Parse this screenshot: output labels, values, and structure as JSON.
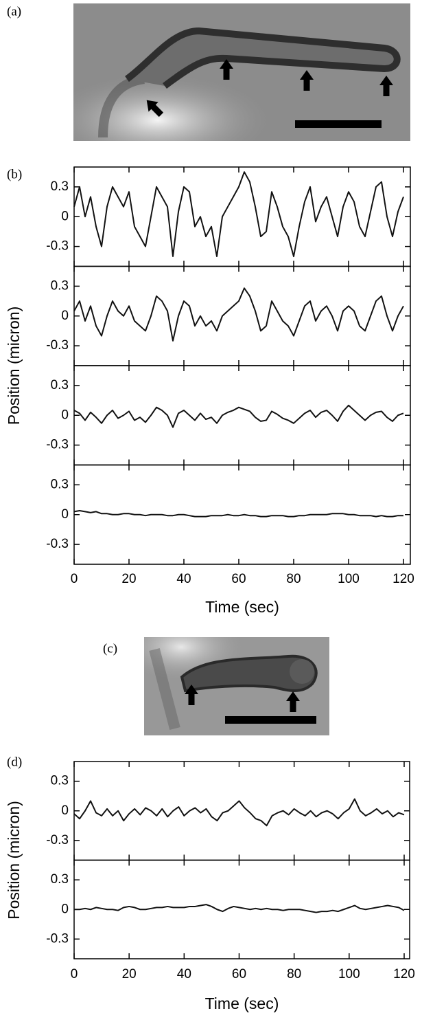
{
  "panel_labels": [
    "(a)",
    "(b)",
    "(c)",
    "(d)"
  ],
  "chart_data": [
    {
      "type": "line",
      "xlabel": "Time (sec)",
      "ylabel": "Position (micron)",
      "xlim": [
        0,
        122.5
      ],
      "xticks": [
        0,
        20,
        40,
        60,
        80,
        100,
        120
      ],
      "ylim": [
        -0.5,
        0.5
      ],
      "yticks": [
        0.3,
        0,
        -0.3
      ],
      "x": [
        0,
        2,
        4,
        6,
        8,
        10,
        12,
        14,
        16,
        18,
        20,
        22,
        24,
        26,
        28,
        30,
        32,
        34,
        36,
        38,
        40,
        42,
        44,
        46,
        48,
        50,
        52,
        54,
        56,
        58,
        60,
        62,
        64,
        66,
        68,
        70,
        72,
        74,
        76,
        78,
        80,
        82,
        84,
        86,
        88,
        90,
        92,
        94,
        96,
        98,
        100,
        102,
        104,
        106,
        108,
        110,
        112,
        114,
        116,
        118,
        120
      ],
      "series": [
        {
          "color": "#111111",
          "values": [
            0.1,
            0.3,
            0.0,
            0.2,
            -0.1,
            -0.3,
            0.1,
            0.3,
            0.2,
            0.1,
            0.25,
            -0.1,
            -0.2,
            -0.3,
            0.0,
            0.3,
            0.2,
            0.1,
            -0.4,
            0.05,
            0.3,
            0.25,
            -0.1,
            0.0,
            -0.2,
            -0.1,
            -0.4,
            0.0,
            0.1,
            0.2,
            0.3,
            0.45,
            0.35,
            0.1,
            -0.2,
            -0.15,
            0.25,
            0.1,
            -0.1,
            -0.2,
            -0.4,
            -0.1,
            0.15,
            0.3,
            -0.05,
            0.1,
            0.2,
            0.0,
            -0.2,
            0.1,
            0.25,
            0.15,
            -0.1,
            -0.2,
            0.05,
            0.3,
            0.35,
            0.0,
            -0.2,
            0.05,
            0.2
          ]
        },
        {
          "color": "#111111",
          "values": [
            0.05,
            0.15,
            -0.05,
            0.1,
            -0.1,
            -0.2,
            0.0,
            0.15,
            0.05,
            0.0,
            0.1,
            -0.05,
            -0.1,
            -0.15,
            0.0,
            0.2,
            0.15,
            0.05,
            -0.25,
            0.0,
            0.15,
            0.1,
            -0.1,
            0.0,
            -0.1,
            -0.05,
            -0.15,
            0.0,
            0.05,
            0.1,
            0.15,
            0.28,
            0.2,
            0.05,
            -0.15,
            -0.1,
            0.15,
            0.05,
            -0.05,
            -0.1,
            -0.2,
            -0.05,
            0.1,
            0.15,
            -0.05,
            0.05,
            0.1,
            0.0,
            -0.15,
            0.05,
            0.1,
            0.05,
            -0.1,
            -0.15,
            0.0,
            0.15,
            0.2,
            0.0,
            -0.15,
            0.0,
            0.1
          ]
        },
        {
          "color": "#111111",
          "values": [
            0.05,
            0.02,
            -0.05,
            0.03,
            -0.02,
            -0.08,
            0.0,
            0.05,
            -0.03,
            0.0,
            0.04,
            -0.05,
            -0.02,
            -0.07,
            0.0,
            0.08,
            0.05,
            0.0,
            -0.12,
            0.02,
            0.05,
            0.0,
            -0.05,
            0.02,
            -0.04,
            -0.02,
            -0.08,
            0.0,
            0.03,
            0.05,
            0.08,
            0.06,
            0.04,
            -0.02,
            -0.06,
            -0.05,
            0.04,
            0.01,
            -0.03,
            -0.05,
            -0.08,
            -0.03,
            0.02,
            0.05,
            -0.02,
            0.03,
            0.05,
            0.0,
            -0.06,
            0.04,
            0.1,
            0.05,
            0.0,
            -0.05,
            0.0,
            0.03,
            0.04,
            -0.02,
            -0.06,
            0.0,
            0.02
          ]
        },
        {
          "color": "#111111",
          "values": [
            0.03,
            0.04,
            0.03,
            0.02,
            0.03,
            0.01,
            0.01,
            0.0,
            0.0,
            0.01,
            0.01,
            0.0,
            0.0,
            -0.01,
            0.0,
            0.0,
            0.0,
            -0.01,
            -0.01,
            0.0,
            0.0,
            -0.01,
            -0.02,
            -0.02,
            -0.02,
            -0.01,
            -0.01,
            -0.01,
            0.0,
            -0.01,
            -0.01,
            0.0,
            -0.01,
            -0.01,
            -0.02,
            -0.02,
            -0.01,
            -0.01,
            -0.01,
            -0.02,
            -0.02,
            -0.01,
            -0.01,
            0.0,
            0.0,
            0.0,
            0.0,
            0.01,
            0.01,
            0.01,
            0.0,
            0.0,
            -0.01,
            -0.01,
            -0.01,
            -0.02,
            -0.01,
            -0.02,
            -0.02,
            -0.01,
            -0.01
          ]
        }
      ]
    },
    {
      "type": "line",
      "xlabel": "Time (sec)",
      "ylabel": "Position (micron)",
      "xlim": [
        0,
        122
      ],
      "xticks": [
        0,
        20,
        40,
        60,
        80,
        100,
        120
      ],
      "ylim": [
        -0.5,
        0.5
      ],
      "yticks": [
        0.3,
        0,
        -0.3
      ],
      "x": [
        0,
        2,
        4,
        6,
        8,
        10,
        12,
        14,
        16,
        18,
        20,
        22,
        24,
        26,
        28,
        30,
        32,
        34,
        36,
        38,
        40,
        42,
        44,
        46,
        48,
        50,
        52,
        54,
        56,
        58,
        60,
        62,
        64,
        66,
        68,
        70,
        72,
        74,
        76,
        78,
        80,
        82,
        84,
        86,
        88,
        90,
        92,
        94,
        96,
        98,
        100,
        102,
        104,
        106,
        108,
        110,
        112,
        114,
        116,
        118,
        120
      ],
      "series": [
        {
          "color": "#111111",
          "values": [
            -0.03,
            -0.08,
            0.0,
            0.1,
            -0.02,
            -0.05,
            0.02,
            -0.05,
            0.0,
            -0.1,
            -0.03,
            0.02,
            -0.04,
            0.03,
            0.0,
            -0.05,
            0.02,
            -0.06,
            0.0,
            0.04,
            -0.05,
            0.0,
            0.03,
            -0.02,
            0.02,
            -0.06,
            -0.1,
            -0.02,
            0.0,
            0.05,
            0.1,
            0.03,
            -0.02,
            -0.08,
            -0.1,
            -0.15,
            -0.05,
            -0.02,
            0.0,
            -0.04,
            0.02,
            -0.02,
            -0.05,
            0.0,
            -0.06,
            -0.02,
            0.0,
            -0.03,
            -0.08,
            -0.02,
            0.02,
            0.12,
            0.0,
            -0.05,
            -0.02,
            0.02,
            -0.03,
            0.0,
            -0.06,
            -0.02,
            -0.04
          ]
        },
        {
          "color": "#111111",
          "values": [
            0.0,
            0.0,
            0.01,
            0.0,
            0.02,
            0.01,
            0.0,
            0.0,
            -0.01,
            0.02,
            0.03,
            0.02,
            0.0,
            0.0,
            0.01,
            0.02,
            0.02,
            0.03,
            0.02,
            0.02,
            0.02,
            0.03,
            0.03,
            0.04,
            0.05,
            0.03,
            0.0,
            -0.02,
            0.01,
            0.03,
            0.02,
            0.01,
            0.0,
            0.01,
            0.0,
            0.01,
            0.0,
            0.0,
            -0.01,
            0.0,
            0.0,
            0.0,
            -0.01,
            -0.02,
            -0.03,
            -0.02,
            -0.02,
            -0.01,
            -0.02,
            0.0,
            0.02,
            0.04,
            0.01,
            0.0,
            0.01,
            0.02,
            0.03,
            0.04,
            0.03,
            0.02,
            -0.01
          ]
        }
      ]
    }
  ]
}
